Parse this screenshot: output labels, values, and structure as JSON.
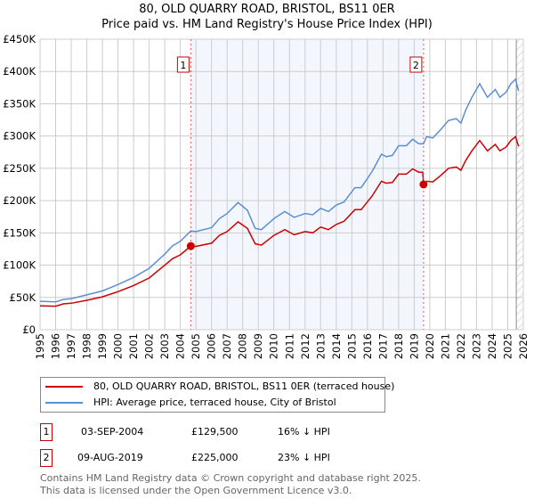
{
  "title_line1": "80, OLD QUARRY ROAD, BRISTOL, BS11 0ER",
  "title_line2": "Price paid vs. HM Land Registry's House Price Index (HPI)",
  "chart_data": {
    "type": "line",
    "title": "80, OLD QUARRY ROAD, BRISTOL, BS11 0ER — Price paid vs. HM Land Registry's House Price Index (HPI)",
    "xlim": [
      1995,
      2026
    ],
    "ylim": [
      0,
      450000
    ],
    "grid": true,
    "y_ticks": [
      0,
      50000,
      100000,
      150000,
      200000,
      250000,
      300000,
      350000,
      400000,
      450000
    ],
    "y_tick_labels": [
      "£0",
      "£50K",
      "£100K",
      "£150K",
      "£200K",
      "£250K",
      "£300K",
      "£350K",
      "£400K",
      "£450K"
    ],
    "x_ticks": [
      1995,
      1996,
      1997,
      1998,
      1999,
      2000,
      2001,
      2002,
      2003,
      2004,
      2005,
      2006,
      2007,
      2008,
      2009,
      2010,
      2011,
      2012,
      2013,
      2014,
      2015,
      2016,
      2017,
      2018,
      2019,
      2020,
      2021,
      2022,
      2023,
      2024,
      2025,
      2026
    ],
    "shaded_range": [
      2004.67,
      2019.6
    ],
    "forecast_hatch_from": 2025.55,
    "series": [
      {
        "name": "80, OLD QUARRY ROAD, BRISTOL, BS11 0ER (terraced house)",
        "color": "#cc0000",
        "points": [
          [
            1995,
            37000
          ],
          [
            1996,
            36500
          ],
          [
            1996.5,
            40000
          ],
          [
            1997,
            41000
          ],
          [
            1998,
            45500
          ],
          [
            1999,
            51000
          ],
          [
            2000,
            59000
          ],
          [
            2001,
            68500
          ],
          [
            2002,
            80000
          ],
          [
            2003,
            100000
          ],
          [
            2003.5,
            110000
          ],
          [
            2004,
            116000
          ],
          [
            2004.67,
            129500
          ],
          [
            2005,
            129000
          ],
          [
            2006,
            134000
          ],
          [
            2006.5,
            146000
          ],
          [
            2007,
            152000
          ],
          [
            2007.7,
            167000
          ],
          [
            2008.3,
            157000
          ],
          [
            2008.8,
            133000
          ],
          [
            2009.2,
            131000
          ],
          [
            2010,
            146000
          ],
          [
            2010.7,
            155000
          ],
          [
            2011.3,
            147000
          ],
          [
            2012,
            152000
          ],
          [
            2012.5,
            150000
          ],
          [
            2013,
            159000
          ],
          [
            2013.5,
            155000
          ],
          [
            2014,
            163000
          ],
          [
            2014.5,
            168000
          ],
          [
            2015.2,
            186000
          ],
          [
            2015.6,
            186000
          ],
          [
            2016.3,
            207000
          ],
          [
            2016.9,
            230000
          ],
          [
            2017.2,
            227000
          ],
          [
            2017.6,
            228000
          ],
          [
            2018,
            241000
          ],
          [
            2018.5,
            241000
          ],
          [
            2018.9,
            249000
          ],
          [
            2019.3,
            244000
          ],
          [
            2019.55,
            244000
          ],
          [
            2019.6,
            225000
          ],
          [
            2019.8,
            230000
          ],
          [
            2020.2,
            229000
          ],
          [
            2020.7,
            239000
          ],
          [
            2021.2,
            250000
          ],
          [
            2021.7,
            252000
          ],
          [
            2022,
            247000
          ],
          [
            2022.3,
            262000
          ],
          [
            2022.7,
            277000
          ],
          [
            2023.2,
            293000
          ],
          [
            2023.7,
            277000
          ],
          [
            2024.2,
            287000
          ],
          [
            2024.5,
            277000
          ],
          [
            2024.9,
            283000
          ],
          [
            2025.2,
            293000
          ],
          [
            2025.5,
            299000
          ],
          [
            2025.7,
            284000
          ]
        ]
      },
      {
        "name": "HPI: Average price, terraced house, City of Bristol",
        "color": "#5b8fd4",
        "points": [
          [
            1995,
            44000
          ],
          [
            1996,
            43000
          ],
          [
            1996.5,
            47000
          ],
          [
            1997,
            48000
          ],
          [
            1998,
            54000
          ],
          [
            1999,
            60000
          ],
          [
            2000,
            70000
          ],
          [
            2001,
            81000
          ],
          [
            2002,
            95000
          ],
          [
            2003,
            117000
          ],
          [
            2003.5,
            130000
          ],
          [
            2004,
            137000
          ],
          [
            2004.67,
            153000
          ],
          [
            2005,
            152000
          ],
          [
            2006,
            158000
          ],
          [
            2006.5,
            172000
          ],
          [
            2007,
            180000
          ],
          [
            2007.7,
            197000
          ],
          [
            2008.3,
            185000
          ],
          [
            2008.8,
            157000
          ],
          [
            2009.2,
            155000
          ],
          [
            2010,
            172000
          ],
          [
            2010.7,
            183000
          ],
          [
            2011.3,
            174000
          ],
          [
            2012,
            180000
          ],
          [
            2012.5,
            178000
          ],
          [
            2013,
            188000
          ],
          [
            2013.5,
            183000
          ],
          [
            2014,
            193000
          ],
          [
            2014.5,
            198000
          ],
          [
            2015.2,
            220000
          ],
          [
            2015.6,
            220000
          ],
          [
            2016.3,
            245000
          ],
          [
            2016.9,
            272000
          ],
          [
            2017.2,
            268000
          ],
          [
            2017.6,
            270000
          ],
          [
            2018,
            285000
          ],
          [
            2018.5,
            285000
          ],
          [
            2018.9,
            295000
          ],
          [
            2019.3,
            288000
          ],
          [
            2019.6,
            288000
          ],
          [
            2019.8,
            299000
          ],
          [
            2020.2,
            297000
          ],
          [
            2020.7,
            310000
          ],
          [
            2021.2,
            324000
          ],
          [
            2021.7,
            327000
          ],
          [
            2022,
            320000
          ],
          [
            2022.3,
            340000
          ],
          [
            2022.7,
            360000
          ],
          [
            2023.2,
            381000
          ],
          [
            2023.7,
            360000
          ],
          [
            2024.2,
            372000
          ],
          [
            2024.5,
            360000
          ],
          [
            2024.9,
            368000
          ],
          [
            2025.2,
            381000
          ],
          [
            2025.5,
            388000
          ],
          [
            2025.7,
            370000
          ]
        ]
      }
    ],
    "sales": [
      {
        "label": "1",
        "year": 2004.67,
        "price": 129500,
        "date": "03-SEP-2004",
        "price_text": "£129,500",
        "hpi_text": "16% ↓ HPI"
      },
      {
        "label": "2",
        "year": 2019.6,
        "price": 225000,
        "date": "09-AUG-2019",
        "price_text": "£225,000",
        "hpi_text": "23% ↓ HPI"
      }
    ]
  },
  "legend": {
    "property_label": "80, OLD QUARRY ROAD, BRISTOL, BS11 0ER (terraced house)",
    "hpi_label": "HPI: Average price, terraced house, City of Bristol"
  },
  "footer": {
    "line1": "Contains HM Land Registry data © Crown copyright and database right 2025.",
    "line2": "This data is licensed under the Open Government Licence v3.0."
  }
}
